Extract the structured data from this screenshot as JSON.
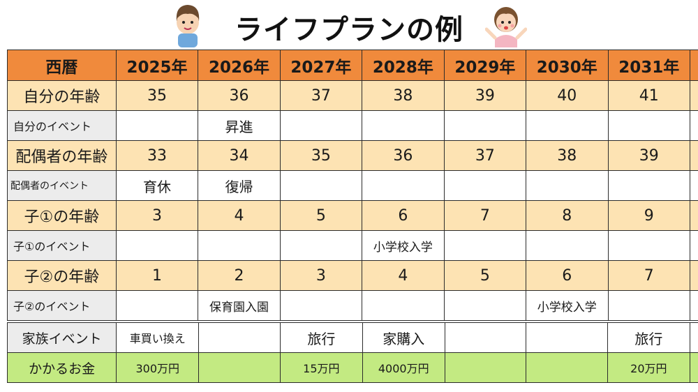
{
  "title": "ライフプランの例",
  "colors": {
    "header": "#f08a3c",
    "age_row": "#fde3b3",
    "event_label": "#ececec",
    "cost_row": "#c3ea82"
  },
  "icons": [
    "boy-character-icon",
    "girl-character-icon"
  ],
  "header": {
    "label": "西暦",
    "years": [
      "2025年",
      "2026年",
      "2027年",
      "2028年",
      "2029年",
      "2030年",
      "2031年"
    ]
  },
  "rows": [
    {
      "label": "自分の年齢",
      "values": [
        "35",
        "36",
        "37",
        "38",
        "39",
        "40",
        "41"
      ]
    },
    {
      "label": "自分のイベント",
      "values": [
        "",
        "昇進",
        "",
        "",
        "",
        "",
        ""
      ]
    },
    {
      "label": "配偶者の年齢",
      "values": [
        "33",
        "34",
        "35",
        "36",
        "37",
        "38",
        "39"
      ]
    },
    {
      "label": "配偶者のイベント",
      "values": [
        "育休",
        "復帰",
        "",
        "",
        "",
        "",
        ""
      ]
    },
    {
      "label": "子①の年齢",
      "values": [
        "3",
        "4",
        "5",
        "6",
        "7",
        "8",
        "9"
      ]
    },
    {
      "label": "子①のイベント",
      "values": [
        "",
        "",
        "",
        "小学校入学",
        "",
        "",
        ""
      ]
    },
    {
      "label": "子②の年齢",
      "values": [
        "1",
        "2",
        "3",
        "4",
        "5",
        "6",
        "7"
      ]
    },
    {
      "label": "子②のイベント",
      "values": [
        "",
        "保育園入園",
        "",
        "",
        "",
        "小学校入学",
        ""
      ]
    }
  ],
  "family": {
    "events": {
      "label": "家族イベント",
      "values": [
        "車買い換え",
        "",
        "旅行",
        "家購入",
        "",
        "",
        "旅行"
      ]
    },
    "cost": {
      "label": "かかるお金",
      "values": [
        "300万円",
        "",
        "15万円",
        "4000万円",
        "",
        "",
        "20万円"
      ]
    }
  }
}
